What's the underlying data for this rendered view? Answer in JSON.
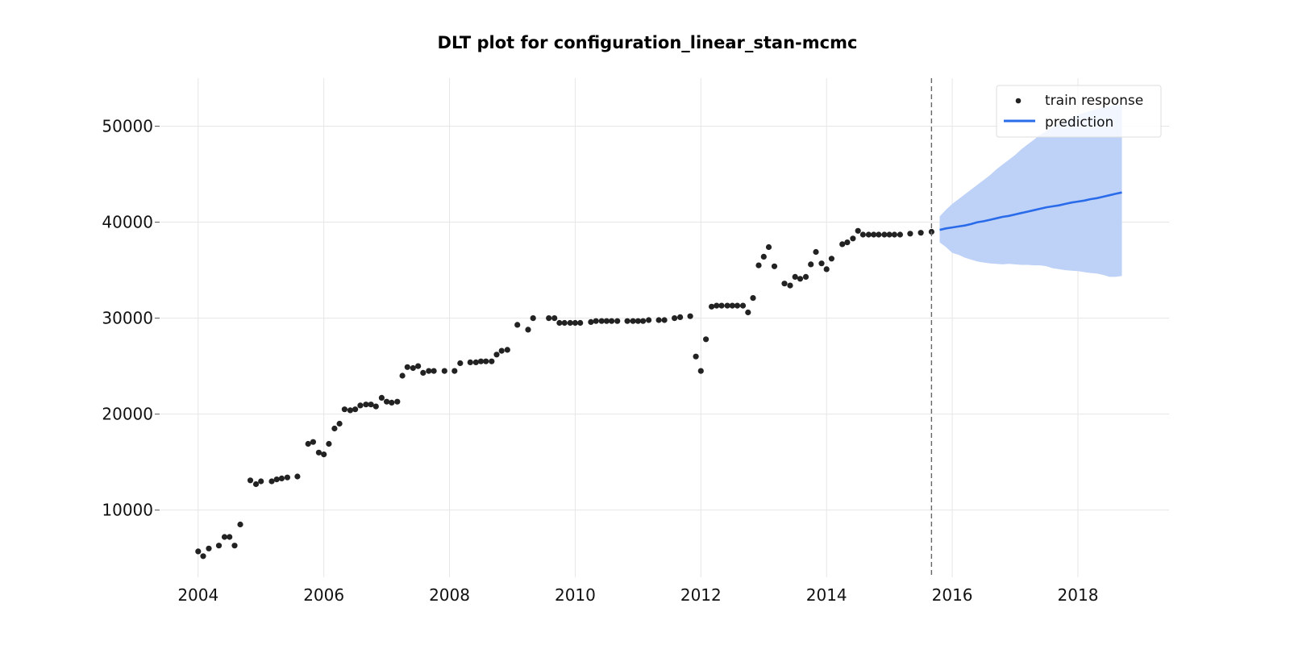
{
  "chart_data": {
    "type": "scatter",
    "title": "DLT plot for configuration_linear_stan-mcmc",
    "xlabel": "",
    "ylabel": "",
    "xlim": [
      2003.4,
      2019.45
    ],
    "ylim": [
      3000,
      55000
    ],
    "x_ticks": [
      2004,
      2006,
      2008,
      2010,
      2012,
      2014,
      2016,
      2018
    ],
    "x_tick_labels": [
      "2004",
      "2006",
      "2008",
      "2010",
      "2012",
      "2014",
      "2016",
      "2018"
    ],
    "y_ticks": [
      10000,
      20000,
      30000,
      40000,
      50000
    ],
    "y_tick_labels": [
      "10000",
      "20000",
      "30000",
      "40000",
      "50000"
    ],
    "grid": true,
    "legend_position": "top-right",
    "legend": {
      "train_label": "train response",
      "prediction_label": "prediction"
    },
    "colors": {
      "train": "#222222",
      "prediction": "#2a6bea",
      "band": "#bed2f8",
      "cutoff": "#666666",
      "grid": "#e6e6e6"
    },
    "train_cutoff_x": 2015.67,
    "series": [
      {
        "name": "train response",
        "type": "scatter",
        "x": [
          2004.0,
          2004.08,
          2004.17,
          2004.33,
          2004.42,
          2004.5,
          2004.58,
          2004.67,
          2004.83,
          2004.92,
          2005.0,
          2005.17,
          2005.25,
          2005.33,
          2005.42,
          2005.58,
          2005.75,
          2005.83,
          2005.92,
          2006.0,
          2006.08,
          2006.17,
          2006.25,
          2006.33,
          2006.42,
          2006.5,
          2006.58,
          2006.67,
          2006.75,
          2006.83,
          2006.92,
          2007.0,
          2007.08,
          2007.17,
          2007.25,
          2007.33,
          2007.42,
          2007.5,
          2007.58,
          2007.67,
          2007.75,
          2007.92,
          2008.08,
          2008.17,
          2008.33,
          2008.42,
          2008.5,
          2008.58,
          2008.67,
          2008.75,
          2008.83,
          2008.92,
          2009.08,
          2009.25,
          2009.33,
          2009.58,
          2009.67,
          2009.75,
          2009.83,
          2009.92,
          2010.0,
          2010.08,
          2010.25,
          2010.33,
          2010.42,
          2010.5,
          2010.58,
          2010.67,
          2010.83,
          2010.92,
          2011.0,
          2011.08,
          2011.17,
          2011.33,
          2011.42,
          2011.58,
          2011.67,
          2011.83,
          2011.92,
          2012.0,
          2012.08,
          2012.17,
          2012.25,
          2012.33,
          2012.42,
          2012.5,
          2012.58,
          2012.67,
          2012.75,
          2012.83,
          2012.92,
          2013.0,
          2013.08,
          2013.17,
          2013.33,
          2013.42,
          2013.5,
          2013.58,
          2013.67,
          2013.75,
          2013.83,
          2013.92,
          2014.0,
          2014.08,
          2014.25,
          2014.33,
          2014.42,
          2014.5,
          2014.58,
          2014.67,
          2014.75,
          2014.83,
          2014.92,
          2015.0,
          2015.08,
          2015.17,
          2015.33,
          2015.5,
          2015.67
        ],
        "y": [
          5700,
          5200,
          6000,
          6300,
          7200,
          7200,
          6300,
          8500,
          13100,
          12700,
          13000,
          13000,
          13200,
          13300,
          13400,
          13500,
          16900,
          17100,
          16000,
          15800,
          16900,
          18500,
          19000,
          20500,
          20400,
          20500,
          20900,
          21000,
          21000,
          20800,
          21700,
          21300,
          21200,
          21300,
          24000,
          24900,
          24800,
          25000,
          24300,
          24500,
          24500,
          24500,
          24500,
          25300,
          25400,
          25400,
          25500,
          25500,
          25500,
          26200,
          26600,
          26700,
          29300,
          28800,
          30000,
          30000,
          30000,
          29500,
          29500,
          29500,
          29500,
          29500,
          29600,
          29700,
          29700,
          29700,
          29700,
          29700,
          29700,
          29700,
          29700,
          29700,
          29800,
          29800,
          29800,
          30000,
          30100,
          30200,
          26000,
          24500,
          27800,
          31200,
          31300,
          31300,
          31300,
          31300,
          31300,
          31300,
          30600,
          32100,
          35500,
          36400,
          37400,
          35400,
          33600,
          33400,
          34300,
          34100,
          34300,
          35600,
          36900,
          35700,
          35100,
          36200,
          37700,
          37900,
          38300,
          39100,
          38700,
          38700,
          38700,
          38700,
          38700,
          38700,
          38700,
          38700,
          38800,
          38900,
          39000
        ]
      },
      {
        "name": "prediction",
        "type": "line",
        "x": [
          2015.8,
          2015.9,
          2016.0,
          2016.1,
          2016.2,
          2016.3,
          2016.4,
          2016.5,
          2016.6,
          2016.7,
          2016.8,
          2016.9,
          2017.0,
          2017.1,
          2017.2,
          2017.3,
          2017.4,
          2017.5,
          2017.6,
          2017.7,
          2017.8,
          2017.9,
          2018.0,
          2018.1,
          2018.2,
          2018.3,
          2018.4,
          2018.5,
          2018.6,
          2018.7
        ],
        "y": [
          39200,
          39350,
          39450,
          39550,
          39650,
          39800,
          40000,
          40100,
          40250,
          40400,
          40550,
          40650,
          40800,
          40950,
          41100,
          41250,
          41400,
          41550,
          41650,
          41750,
          41900,
          42050,
          42150,
          42250,
          42400,
          42500,
          42650,
          42800,
          42950,
          43100
        ],
        "lower": [
          37900,
          37400,
          36800,
          36600,
          36300,
          36100,
          35900,
          35800,
          35700,
          35650,
          35600,
          35650,
          35600,
          35550,
          35550,
          35500,
          35500,
          35400,
          35200,
          35100,
          35000,
          34950,
          34900,
          34800,
          34700,
          34650,
          34500,
          34300,
          34300,
          34400
        ],
        "upper": [
          40600,
          41300,
          41900,
          42400,
          42900,
          43400,
          43900,
          44400,
          44900,
          45500,
          46000,
          46500,
          47000,
          47600,
          48100,
          48600,
          49100,
          49500,
          49900,
          50300,
          50600,
          50900,
          51200,
          51400,
          51600,
          51800,
          52000,
          52100,
          52200,
          52300
        ]
      }
    ]
  }
}
